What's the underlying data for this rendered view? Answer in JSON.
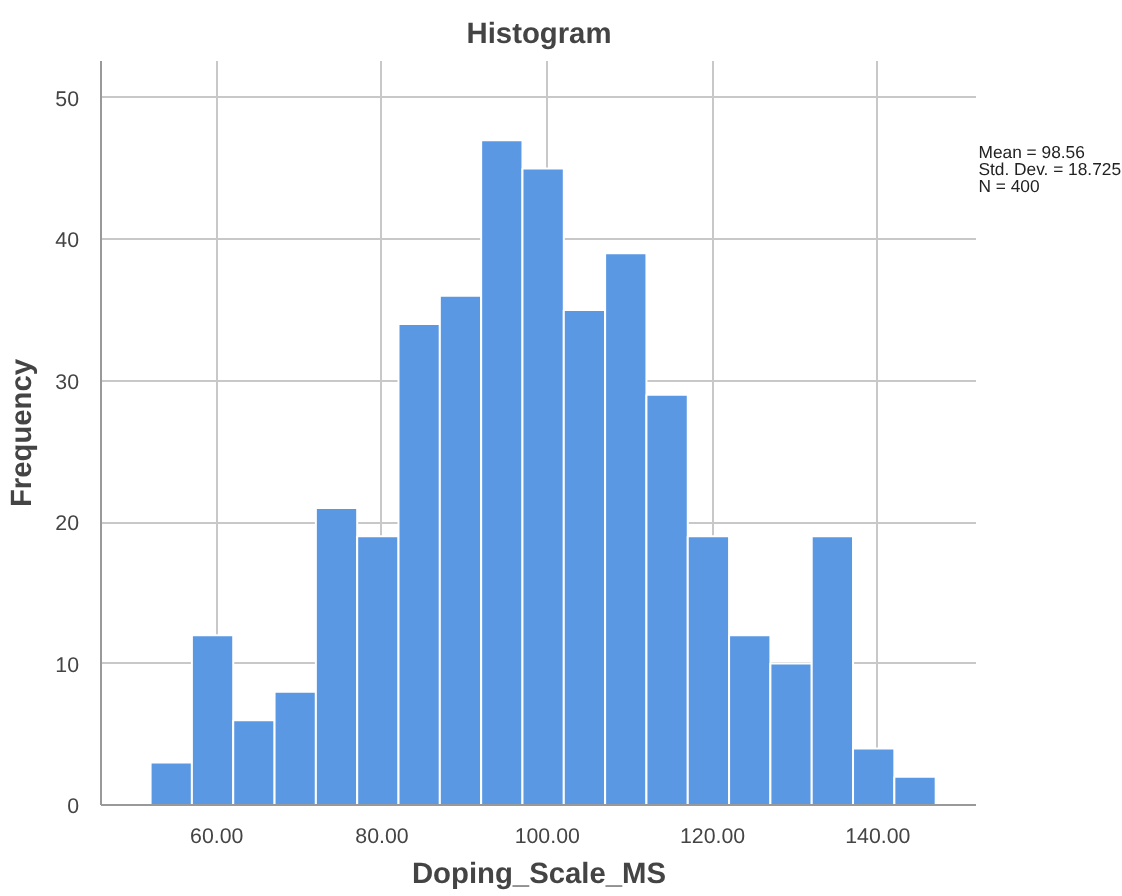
{
  "chart_data": {
    "type": "histogram",
    "title": "Histogram",
    "xlabel": "Doping_Scale_MS",
    "ylabel": "Frequency",
    "bins": [
      52,
      57,
      62,
      67,
      72,
      77,
      82,
      87,
      92,
      97,
      102,
      107,
      112,
      117,
      122,
      127,
      132,
      137,
      142,
      147
    ],
    "values": [
      3,
      12,
      6,
      8,
      21,
      19,
      34,
      36,
      47,
      45,
      35,
      39,
      29,
      19,
      12,
      10,
      19,
      4,
      2
    ],
    "color": "#5a98e4",
    "xlim": [
      46,
      152
    ],
    "ylim": [
      0,
      52.6
    ],
    "xticks": [
      {
        "value": 60,
        "label": "60.00"
      },
      {
        "value": 80,
        "label": "80.00"
      },
      {
        "value": 100,
        "label": "100.00"
      },
      {
        "value": 120,
        "label": "120.00"
      },
      {
        "value": 140,
        "label": "140.00"
      }
    ],
    "yticks": [
      0,
      10,
      20,
      30,
      40,
      50
    ],
    "grid": true,
    "annotations": [
      "Mean = 98.56",
      "Std. Dev. = 18.725",
      "N = 400"
    ]
  }
}
